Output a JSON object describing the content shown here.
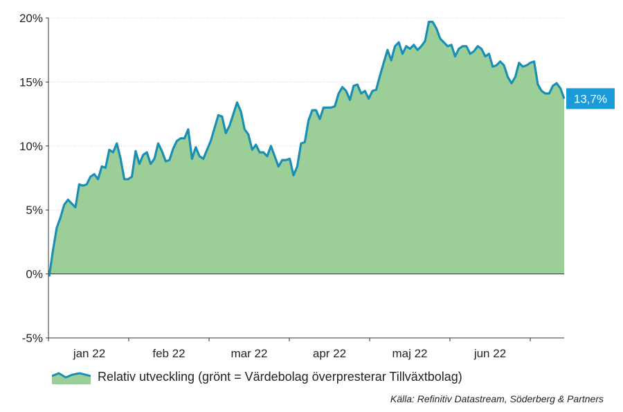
{
  "chart_data": {
    "type": "area",
    "y_unit": "%",
    "ylim": [
      -5,
      20
    ],
    "yticks": [
      -5,
      0,
      5,
      10,
      15,
      20
    ],
    "ytick_labels": [
      "-5%",
      "0%",
      "5%",
      "10%",
      "15%",
      "20%"
    ],
    "xtick_labels": [
      "jan 22",
      "feb 22",
      "mar 22",
      "apr 22",
      "maj 22",
      "jun 22"
    ],
    "grid": true,
    "series": [
      {
        "name": "Relativ utveckling (grönt = Värdebolag överpresterar Tillväxtbolag)",
        "values": [
          -0.2,
          1.8,
          3.6,
          4.4,
          5.4,
          5.8,
          5.5,
          5.2,
          7.0,
          6.9,
          7.0,
          7.6,
          7.8,
          7.4,
          8.4,
          8.3,
          9.7,
          9.5,
          10.2,
          9.0,
          7.4,
          7.4,
          7.6,
          9.6,
          8.6,
          9.3,
          9.5,
          8.6,
          9.0,
          10.2,
          9.6,
          8.8,
          8.9,
          9.8,
          10.4,
          10.6,
          10.6,
          11.3,
          9.0,
          9.9,
          9.2,
          9.0,
          9.7,
          10.4,
          11.4,
          12.4,
          12.3,
          11.0,
          11.6,
          12.5,
          13.4,
          12.7,
          11.3,
          10.9,
          9.7,
          10.1,
          9.5,
          9.5,
          9.2,
          10.0,
          9.2,
          8.4,
          8.9,
          8.9,
          9.0,
          7.7,
          8.4,
          10.2,
          10.3,
          12.0,
          12.8,
          12.8,
          12.1,
          13.0,
          13.0,
          13.0,
          13.1,
          14.1,
          14.6,
          14.3,
          13.6,
          14.7,
          14.8,
          14.1,
          14.3,
          13.7,
          14.3,
          14.4,
          15.5,
          16.5,
          17.5,
          16.7,
          17.8,
          18.1,
          17.2,
          17.8,
          17.6,
          17.9,
          17.5,
          17.8,
          18.2,
          19.7,
          19.7,
          19.2,
          18.4,
          18.1,
          17.8,
          17.9,
          17.0,
          17.6,
          17.8,
          17.8,
          17.2,
          17.4,
          17.8,
          17.6,
          17.0,
          17.2,
          16.2,
          16.3,
          16.6,
          16.3,
          15.4,
          14.9,
          15.4,
          16.5,
          16.2,
          16.3,
          16.5,
          16.6,
          14.8,
          14.3,
          14.1,
          14.1,
          14.7,
          14.9,
          14.5,
          13.7
        ],
        "color": "#1a8fb3",
        "fill": "#9ccf97"
      }
    ],
    "end_label": "13,7%",
    "end_label_color": "#1a9ad6"
  },
  "source": "Källa: Refinitiv Datastream, Söderberg & Partners"
}
